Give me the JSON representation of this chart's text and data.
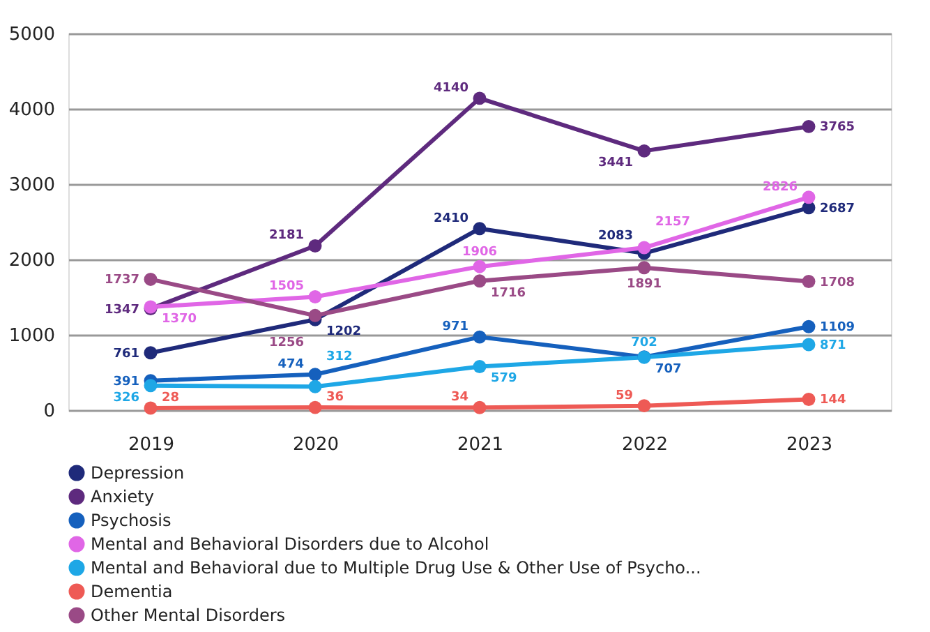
{
  "chart_data": {
    "type": "line",
    "categories": [
      "2019",
      "2020",
      "2021",
      "2022",
      "2023"
    ],
    "series": [
      {
        "name": "Depression",
        "color": "#1f2a7a",
        "values": [
          761,
          1202,
          2410,
          2083,
          2687
        ]
      },
      {
        "name": "Anxiety",
        "color": "#5e2a7e",
        "values": [
          1347,
          2181,
          4140,
          3441,
          3765
        ]
      },
      {
        "name": "Psychosis",
        "color": "#1560bd",
        "values": [
          391,
          474,
          971,
          707,
          1109
        ]
      },
      {
        "name": "Mental and Behavioral Disorders due to Alcohol",
        "color": "#e066e6",
        "values": [
          1370,
          1505,
          1906,
          2157,
          2826
        ]
      },
      {
        "name": "Mental and Behavioral due to Multiple Drug Use & Other Use of Psycho...",
        "color": "#1ea7e6",
        "values": [
          326,
          312,
          579,
          702,
          871
        ]
      },
      {
        "name": "Dementia",
        "color": "#ee5a55",
        "values": [
          28,
          36,
          34,
          59,
          144
        ]
      },
      {
        "name": "Other Mental Disorders",
        "color": "#9a4a86",
        "values": [
          1737,
          1256,
          1716,
          1891,
          1708
        ]
      }
    ],
    "ylim": [
      0,
      5000
    ],
    "yticks": [
      0,
      1000,
      2000,
      3000,
      4000,
      5000
    ],
    "grid": "y",
    "legend": "bottom",
    "marker": "circle",
    "line_style": "solid",
    "data_labels": true
  }
}
